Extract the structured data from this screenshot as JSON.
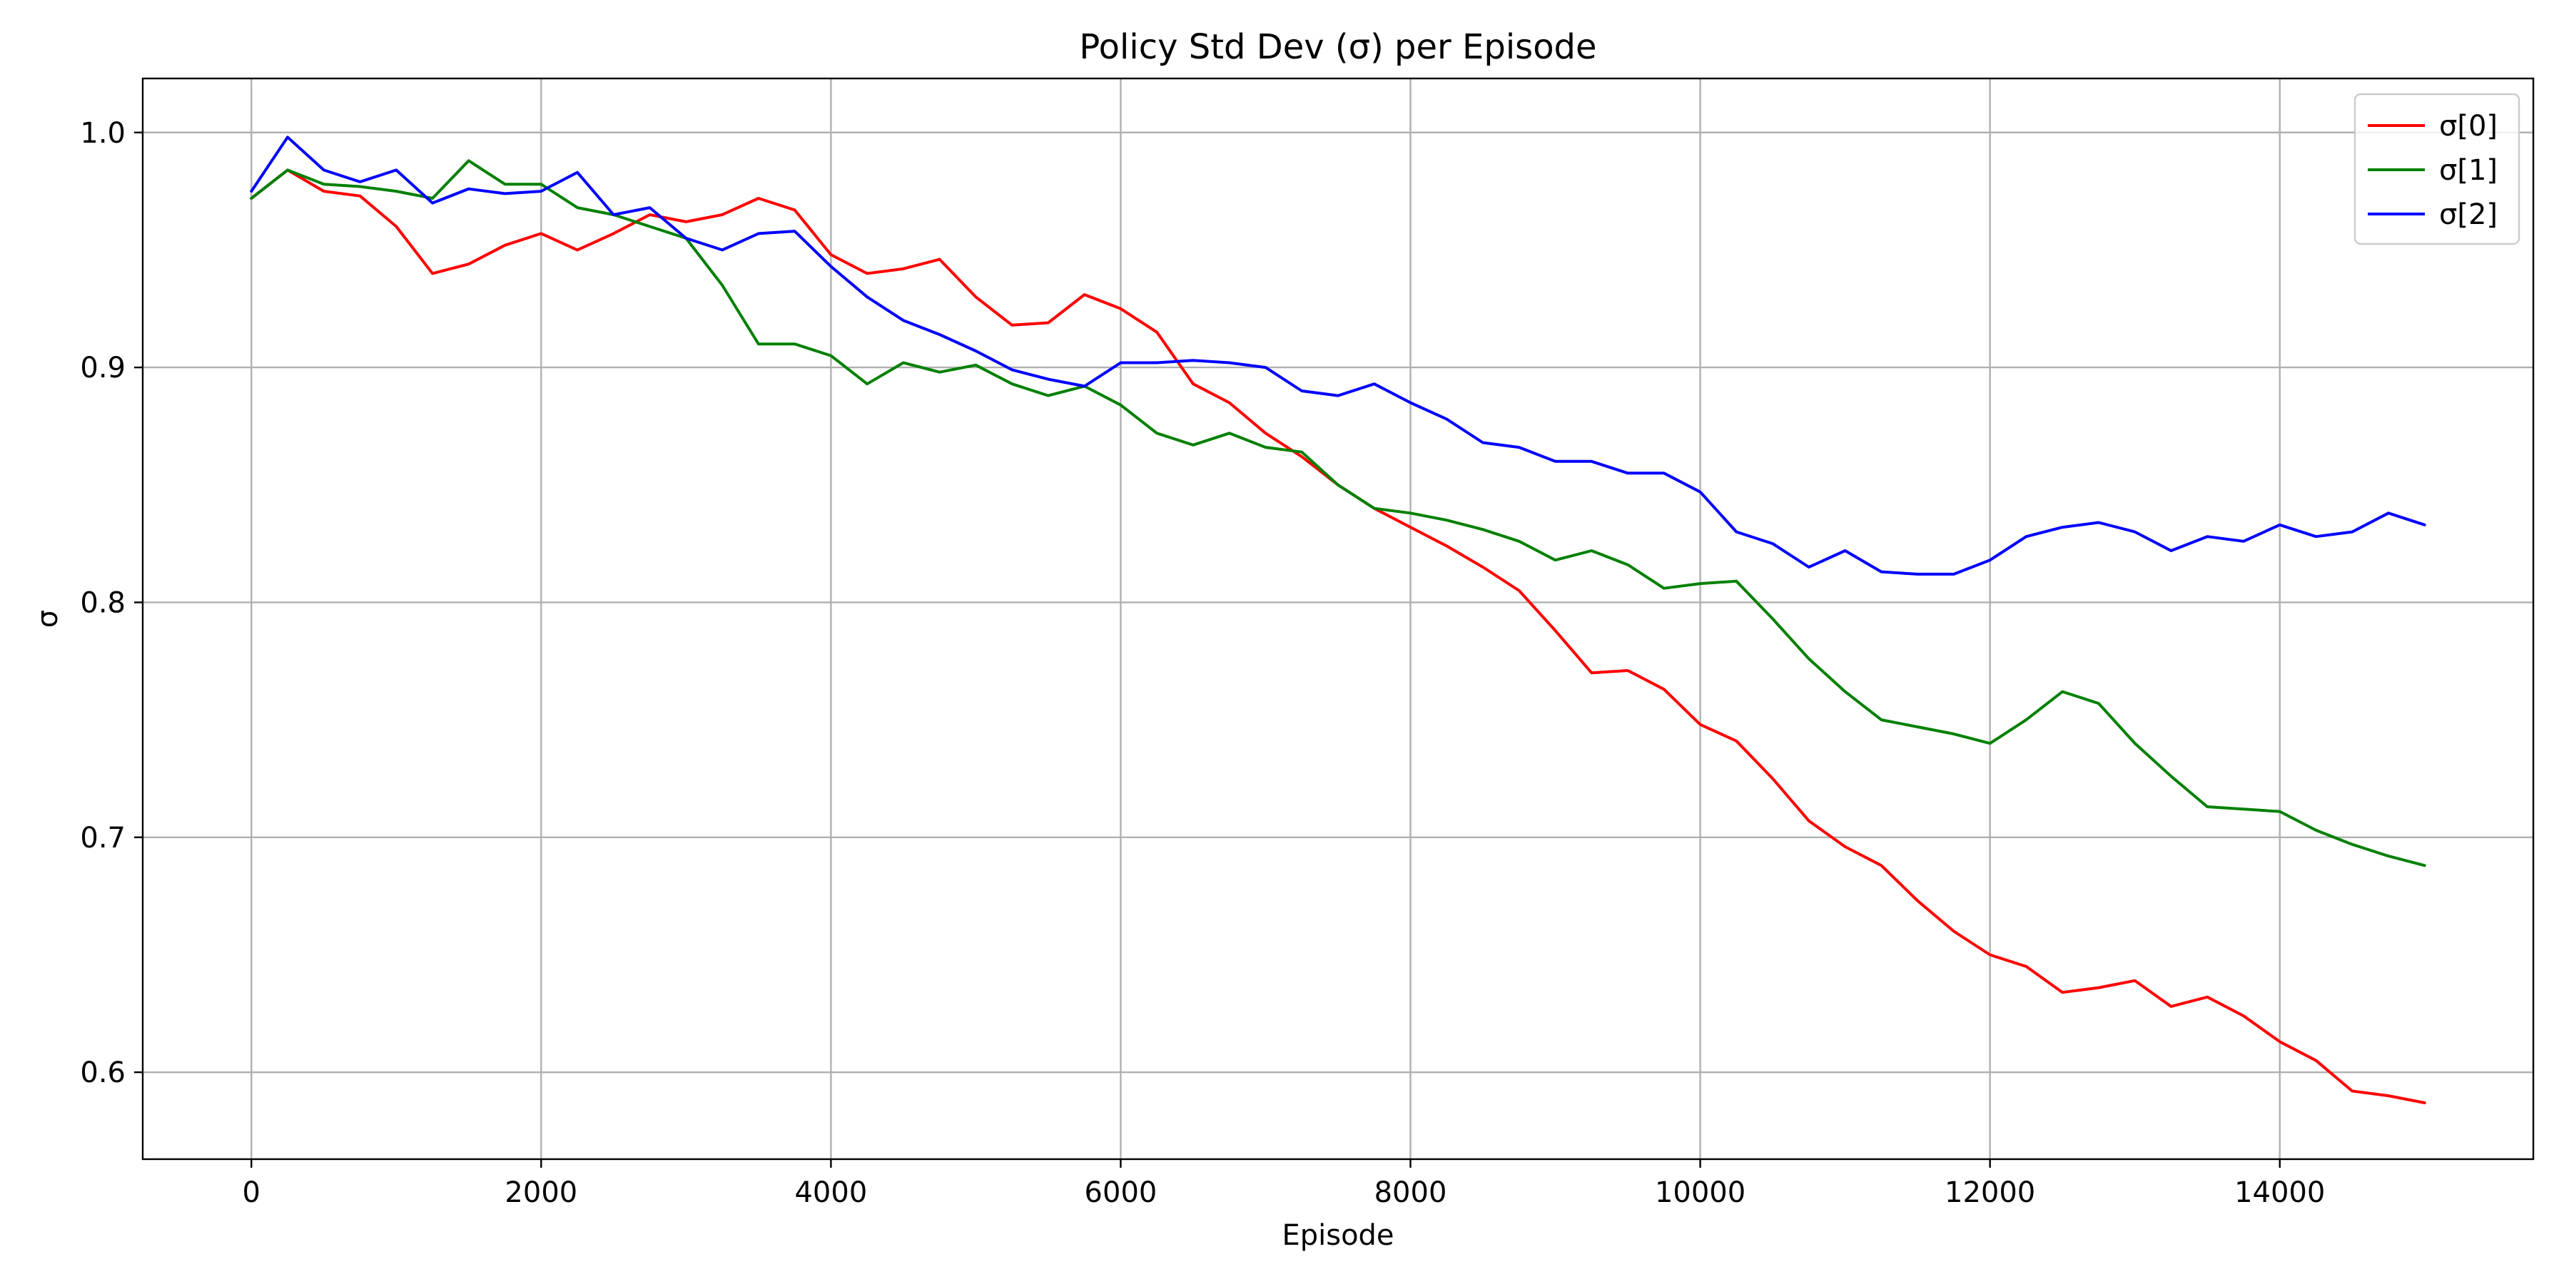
{
  "chart_data": {
    "type": "line",
    "title": "Policy Std Dev (σ) per Episode",
    "xlabel": "Episode",
    "ylabel": "σ",
    "xlim": [
      -750,
      15750
    ],
    "ylim": [
      0.563,
      1.023
    ],
    "xticks": [
      0,
      2000,
      4000,
      6000,
      8000,
      10000,
      12000,
      14000
    ],
    "yticks": [
      0.6,
      0.7,
      0.8,
      0.9,
      1.0
    ],
    "xtick_labels": [
      "0",
      "2000",
      "4000",
      "6000",
      "8000",
      "10000",
      "12000",
      "14000"
    ],
    "ytick_labels": [
      "0.6",
      "0.7",
      "0.8",
      "0.9",
      "1.0"
    ],
    "grid": true,
    "legend_position": "top-right",
    "x": [
      0,
      250,
      500,
      750,
      1000,
      1250,
      1500,
      1750,
      2000,
      2250,
      2500,
      2750,
      3000,
      3250,
      3500,
      3750,
      4000,
      4250,
      4500,
      4750,
      5000,
      5250,
      5500,
      5750,
      6000,
      6250,
      6500,
      6750,
      7000,
      7250,
      7500,
      7750,
      8000,
      8250,
      8500,
      8750,
      9000,
      9250,
      9500,
      9750,
      10000,
      10250,
      10500,
      10750,
      11000,
      11250,
      11500,
      11750,
      12000,
      12250,
      12500,
      12750,
      13000,
      13250,
      13500,
      13750,
      14000,
      14250,
      14500,
      14750,
      15000
    ],
    "series": [
      {
        "name": "σ[0]",
        "color": "#ff0000",
        "values": [
          0.972,
          0.984,
          0.975,
          0.973,
          0.96,
          0.94,
          0.944,
          0.952,
          0.957,
          0.95,
          0.957,
          0.965,
          0.962,
          0.965,
          0.972,
          0.967,
          0.948,
          0.94,
          0.942,
          0.946,
          0.93,
          0.918,
          0.919,
          0.931,
          0.925,
          0.915,
          0.893,
          0.885,
          0.872,
          0.862,
          0.85,
          0.84,
          0.832,
          0.824,
          0.815,
          0.805,
          0.788,
          0.77,
          0.771,
          0.763,
          0.748,
          0.741,
          0.725,
          0.707,
          0.696,
          0.688,
          0.673,
          0.66,
          0.65,
          0.645,
          0.634,
          0.636,
          0.639,
          0.628,
          0.632,
          0.624,
          0.613,
          0.605,
          0.592,
          0.59,
          0.587
        ]
      },
      {
        "name": "σ[1]",
        "color": "#008000",
        "values": [
          0.972,
          0.984,
          0.978,
          0.977,
          0.975,
          0.972,
          0.988,
          0.978,
          0.978,
          0.968,
          0.965,
          0.96,
          0.955,
          0.935,
          0.91,
          0.91,
          0.905,
          0.893,
          0.902,
          0.898,
          0.901,
          0.893,
          0.888,
          0.892,
          0.884,
          0.872,
          0.867,
          0.872,
          0.866,
          0.864,
          0.85,
          0.84,
          0.838,
          0.835,
          0.831,
          0.826,
          0.818,
          0.822,
          0.816,
          0.806,
          0.808,
          0.809,
          0.793,
          0.776,
          0.762,
          0.75,
          0.747,
          0.744,
          0.74,
          0.75,
          0.762,
          0.757,
          0.74,
          0.726,
          0.713,
          0.712,
          0.711,
          0.703,
          0.697,
          0.692,
          0.688
        ]
      },
      {
        "name": "σ[2]",
        "color": "#0000ff",
        "values": [
          0.975,
          0.998,
          0.984,
          0.979,
          0.984,
          0.97,
          0.976,
          0.974,
          0.975,
          0.983,
          0.965,
          0.968,
          0.955,
          0.95,
          0.957,
          0.958,
          0.943,
          0.93,
          0.92,
          0.914,
          0.907,
          0.899,
          0.895,
          0.892,
          0.902,
          0.902,
          0.903,
          0.902,
          0.9,
          0.89,
          0.888,
          0.893,
          0.885,
          0.878,
          0.868,
          0.866,
          0.86,
          0.86,
          0.855,
          0.855,
          0.847,
          0.83,
          0.825,
          0.815,
          0.822,
          0.813,
          0.812,
          0.812,
          0.818,
          0.828,
          0.832,
          0.834,
          0.83,
          0.822,
          0.828,
          0.826,
          0.833,
          0.828,
          0.83,
          0.838,
          0.833
        ]
      }
    ]
  }
}
